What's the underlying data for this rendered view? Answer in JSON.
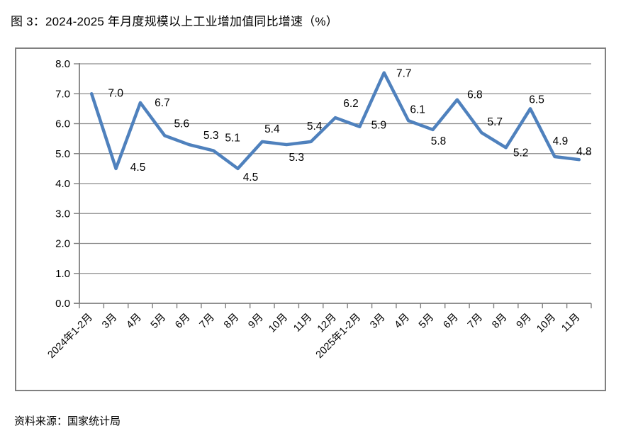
{
  "title": "图 3：2024-2025 年月度规模以上工业增加值同比增速（%）",
  "source": "资料来源：国家统计局",
  "colors": {
    "line": "#4F81BD",
    "grid": "#8C8C8C",
    "axis": "#808080",
    "frame": "#808080",
    "text": "#000000"
  },
  "chart_data": {
    "type": "line",
    "title": "图 3：2024-2025 年月度规模以上工业增加值同比增速（%）",
    "categories": [
      "2024年1-2月",
      "3月",
      "4月",
      "5月",
      "6月",
      "7月",
      "8月",
      "9月",
      "10月",
      "11月",
      "12月",
      "2025年1-2月",
      "3月",
      "4月",
      "5月",
      "6月",
      "7月",
      "8月",
      "9月",
      "10月",
      "11月"
    ],
    "values": [
      7.0,
      4.5,
      6.7,
      5.6,
      5.3,
      5.1,
      4.5,
      5.4,
      5.3,
      5.4,
      6.2,
      5.9,
      7.7,
      6.1,
      5.8,
      6.8,
      5.7,
      5.2,
      6.5,
      4.9,
      4.8
    ],
    "data_labels": [
      "7.0",
      "4.5",
      "6.7",
      "5.6",
      "5.3",
      "5.1",
      "4.5",
      "5.4",
      "5.3",
      "5.4",
      "6.2",
      "5.9",
      "7.7",
      "6.1",
      "5.8",
      "6.8",
      "5.7",
      "5.2",
      "6.5",
      "4.9",
      "4.8"
    ],
    "ylim": [
      0.0,
      8.0
    ],
    "ytick_step": 1.0,
    "ytick_labels": [
      "0.0",
      "1.0",
      "2.0",
      "3.0",
      "4.0",
      "5.0",
      "6.0",
      "7.0",
      "8.0"
    ],
    "xlabel": "",
    "ylabel": "",
    "grid": true,
    "legend": "none"
  }
}
